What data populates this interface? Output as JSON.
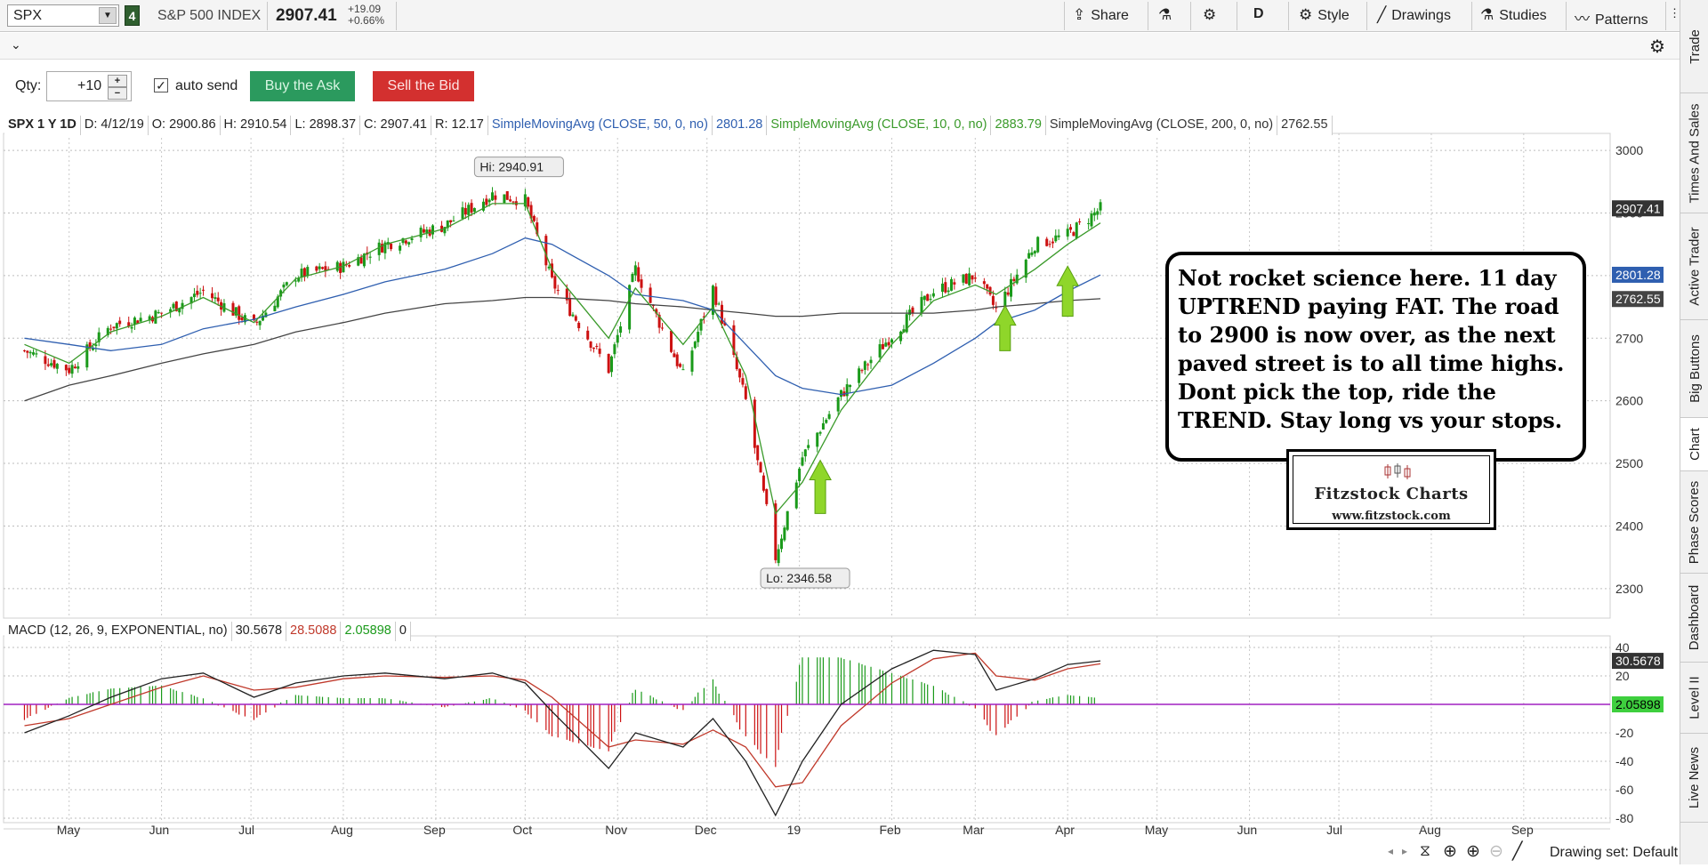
{
  "header": {
    "symbol": "SPX",
    "link_group": "4",
    "instrument_name": "S&P 500 INDEX",
    "last_price": "2907.41",
    "change_abs": "+19.09",
    "change_pct": "+0.66%",
    "buttons": {
      "share": "Share",
      "flask": "",
      "gear": "",
      "aggregation": "D",
      "style": "Style",
      "drawings": "Drawings",
      "studies": "Studies",
      "patterns": "Patterns"
    }
  },
  "order_bar": {
    "qty_label": "Qty:",
    "qty_value": "+10",
    "auto_send_label": "auto send",
    "auto_send_checked": "✓",
    "buy_label": "Buy the Ask",
    "sell_label": "Sell the Bid",
    "buy_color": "#2b9a5e",
    "sell_color": "#d3302f"
  },
  "price_legend": {
    "symbol_period": "SPX 1 Y 1D",
    "date": "D: 4/12/19",
    "open": "O: 2900.86",
    "high": "H: 2910.54",
    "low": "L: 2898.37",
    "close": "C: 2907.41",
    "range": "R: 12.17",
    "sma50_label": "SimpleMovingAvg (CLOSE, 50, 0, no)",
    "sma50_value": "2801.28",
    "sma10_label": "SimpleMovingAvg (CLOSE, 10, 0, no)",
    "sma10_value": "2883.79",
    "sma200_label": "SimpleMovingAvg (CLOSE, 200, 0, no)",
    "sma200_value": "2762.55"
  },
  "macd_legend": {
    "label": "MACD (12, 26, 9, EXPONENTIAL, no)",
    "value": "30.5678",
    "avg": "28.5088",
    "diff": "2.05898",
    "zero": "0"
  },
  "annotations": {
    "high_label": "Hi: 2940.91",
    "low_label": "Lo: 2346.58",
    "note_text": "Not rocket science here.   11 day UPTREND paying FAT.  The road to 2900 is now over, as the next paved street is to all time highs.  Dont pick the top, ride the TREND. Stay long vs your stops.",
    "logo_title": "Fitzstock Charts",
    "logo_url": "www.fitzstock.com"
  },
  "price_badges": {
    "last": "2907.41",
    "sma50": "2801.28",
    "sma200": "2762.55",
    "macd_value": "30.5678",
    "macd_diff": "2.05898"
  },
  "right_tabs": [
    "Trade",
    "Times And Sales",
    "Active Trader",
    "Big Buttons",
    "Chart",
    "Phase Scores",
    "Dashboard",
    "Level II",
    "Live News"
  ],
  "status": {
    "drawing_set": "Drawing set: Default"
  },
  "colors": {
    "up_candle": "#1a9a1a",
    "down_candle": "#cc1111",
    "sma10": "#3a9a2a",
    "sma50": "#2f5fb0",
    "sma200": "#444444",
    "macd_line": "#222222",
    "macd_avg": "#c0392b",
    "zero_line": "#a020c0",
    "arrow": "#8fd62a"
  },
  "chart_data": [
    {
      "type": "candlestick",
      "title": "",
      "xlabel": "",
      "ylabel": "",
      "ylim": [
        2260,
        3020
      ],
      "yticks": [
        2300,
        2400,
        2500,
        2600,
        2700,
        2800,
        2900,
        3000
      ],
      "x_tick_labels": [
        "May",
        "Jun",
        "Jul",
        "Aug",
        "Sep",
        "Oct",
        "Nov",
        "Dec",
        "19",
        "Feb",
        "Mar",
        "Apr",
        "May",
        "Jun",
        "Jul",
        "Aug",
        "Sep"
      ],
      "grid": true,
      "series": [
        {
          "name": "SPX",
          "x": [
            "2018-04-16",
            "2018-05-01",
            "2018-05-15",
            "2018-06-01",
            "2018-06-15",
            "2018-07-02",
            "2018-07-16",
            "2018-08-01",
            "2018-08-15",
            "2018-09-04",
            "2018-09-20",
            "2018-10-01",
            "2018-10-10",
            "2018-10-29",
            "2018-11-07",
            "2018-11-23",
            "2018-12-03",
            "2018-12-14",
            "2018-12-24",
            "2019-01-02",
            "2019-01-15",
            "2019-02-01",
            "2019-02-15",
            "2019-03-01",
            "2019-03-08",
            "2019-03-21",
            "2019-04-01",
            "2019-04-12"
          ],
          "close": [
            2680,
            2650,
            2720,
            2740,
            2775,
            2720,
            2800,
            2815,
            2850,
            2880,
            2930,
            2920,
            2790,
            2650,
            2810,
            2640,
            2780,
            2600,
            2350,
            2510,
            2610,
            2705,
            2775,
            2800,
            2745,
            2850,
            2865,
            2907
          ]
        },
        {
          "name": "SimpleMovingAvg (CLOSE, 10, 0, no)",
          "values": [
            2690,
            2660,
            2710,
            2735,
            2765,
            2725,
            2795,
            2815,
            2850,
            2875,
            2915,
            2915,
            2810,
            2700,
            2780,
            2690,
            2750,
            2640,
            2420,
            2470,
            2585,
            2690,
            2760,
            2785,
            2770,
            2810,
            2850,
            2884
          ]
        },
        {
          "name": "SimpleMovingAvg (CLOSE, 50, 0, no)",
          "values": [
            2700,
            2690,
            2680,
            2690,
            2715,
            2730,
            2750,
            2770,
            2790,
            2810,
            2835,
            2860,
            2850,
            2800,
            2770,
            2760,
            2745,
            2690,
            2640,
            2620,
            2610,
            2625,
            2660,
            2700,
            2725,
            2745,
            2775,
            2801
          ]
        },
        {
          "name": "SimpleMovingAvg (CLOSE, 200, 0, no)",
          "values": [
            2600,
            2625,
            2640,
            2660,
            2675,
            2690,
            2710,
            2725,
            2740,
            2755,
            2760,
            2765,
            2765,
            2760,
            2755,
            2750,
            2745,
            2740,
            2735,
            2735,
            2740,
            2740,
            2740,
            2745,
            2750,
            2755,
            2760,
            2763
          ]
        }
      ]
    },
    {
      "type": "line",
      "title": "",
      "ylim": [
        -80,
        45
      ],
      "yticks": [
        -80,
        -60,
        -40,
        -20,
        0,
        20,
        40
      ],
      "series": [
        {
          "name": "MACD (12, 26, 9, EXPONENTIAL, no)",
          "values": [
            -20,
            -8,
            5,
            18,
            22,
            5,
            15,
            20,
            22,
            18,
            22,
            15,
            -5,
            -45,
            -20,
            -30,
            -10,
            -40,
            -78,
            -40,
            0,
            25,
            38,
            35,
            10,
            18,
            28,
            30.57
          ]
        },
        {
          "name": "avg",
          "values": [
            -15,
            -10,
            0,
            12,
            20,
            10,
            12,
            18,
            20,
            19,
            20,
            17,
            5,
            -30,
            -25,
            -28,
            -18,
            -30,
            -58,
            -55,
            -15,
            15,
            32,
            36,
            20,
            17,
            25,
            28.51
          ]
        }
      ]
    }
  ]
}
